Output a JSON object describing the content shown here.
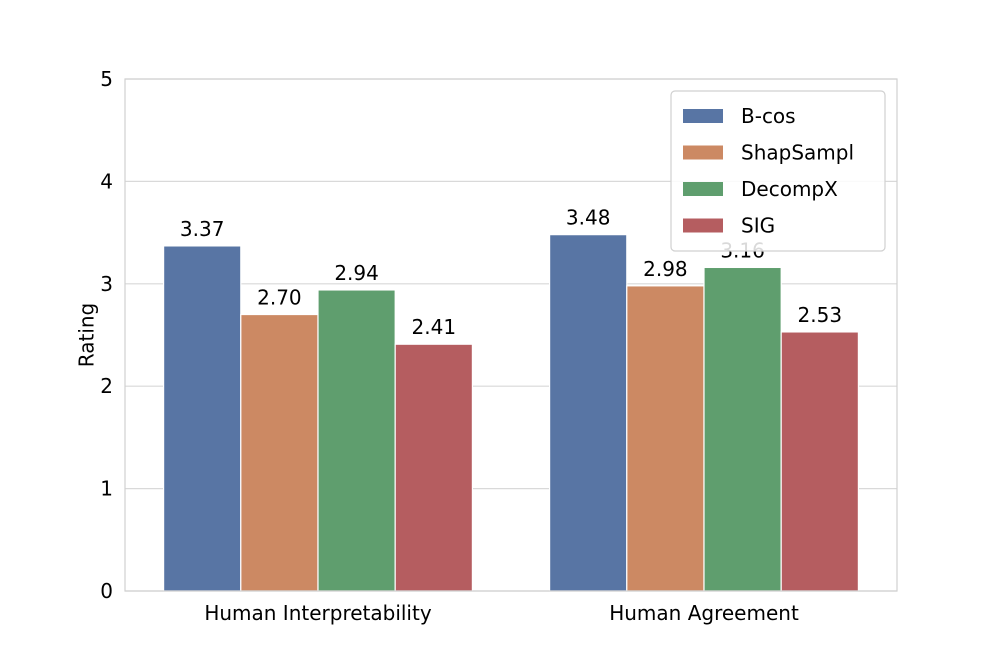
{
  "chart_data": {
    "type": "bar",
    "title": "",
    "xlabel": "",
    "ylabel": "Rating",
    "ylim": [
      0,
      5
    ],
    "yticks": [
      "0",
      "1",
      "2",
      "3",
      "4",
      "5"
    ],
    "grid": true,
    "legend_position": "top-right",
    "categories": [
      "Human Interpretability",
      "Human Agreement"
    ],
    "series": [
      {
        "name": "B-cos",
        "color": "#5875a4",
        "values": [
          3.37,
          3.48
        ],
        "labels": [
          "3.37",
          "3.48"
        ]
      },
      {
        "name": "ShapSampl",
        "color": "#cc8963",
        "values": [
          2.7,
          2.98
        ],
        "labels": [
          "2.70",
          "2.98"
        ]
      },
      {
        "name": "DecompX",
        "color": "#5f9e6e",
        "values": [
          2.94,
          3.16
        ],
        "labels": [
          "2.94",
          "3.16"
        ]
      },
      {
        "name": "SIG",
        "color": "#b55d60",
        "values": [
          2.41,
          2.53
        ],
        "labels": [
          "2.41",
          "2.53"
        ]
      }
    ]
  }
}
